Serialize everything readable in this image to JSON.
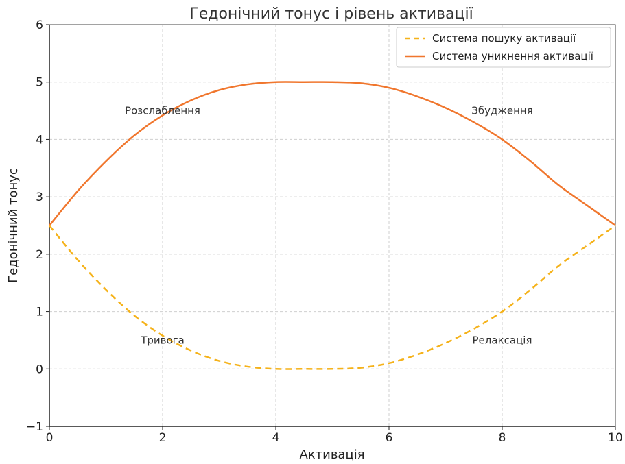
{
  "chart_data": {
    "type": "line",
    "title": "Гедонічний тонус і рівень активації",
    "xlabel": "Активація",
    "ylabel": "Гедонічний тонус",
    "xlim": [
      0,
      10
    ],
    "ylim": [
      -1,
      6
    ],
    "x_ticks": [
      0,
      2,
      4,
      6,
      8,
      10
    ],
    "y_ticks": [
      -1,
      0,
      1,
      2,
      3,
      4,
      5,
      6
    ],
    "grid": true,
    "legend_position": "top-right",
    "series": [
      {
        "name": "Система пошуку активації",
        "color": "#f5b21a",
        "style": "dashed",
        "x": [
          0,
          0.5,
          1,
          1.5,
          2,
          2.5,
          3,
          3.5,
          4,
          4.5,
          5,
          5.5,
          6,
          6.5,
          7,
          7.5,
          8,
          8.5,
          9,
          9.5,
          10
        ],
        "y": [
          2.5,
          1.9,
          1.38,
          0.93,
          0.58,
          0.32,
          0.14,
          0.04,
          0.0,
          0.0,
          0.0,
          0.02,
          0.1,
          0.25,
          0.45,
          0.7,
          1.0,
          1.38,
          1.8,
          2.15,
          2.5
        ]
      },
      {
        "name": "Система уникнення активації",
        "color": "#f0762d",
        "style": "solid",
        "x": [
          0,
          0.5,
          1,
          1.5,
          2,
          2.5,
          3,
          3.5,
          4,
          4.5,
          5,
          5.5,
          6,
          6.5,
          7,
          7.5,
          8,
          8.5,
          9,
          9.5,
          10
        ],
        "y": [
          2.5,
          3.1,
          3.62,
          4.07,
          4.42,
          4.68,
          4.86,
          4.96,
          5.0,
          5.0,
          5.0,
          4.98,
          4.9,
          4.75,
          4.55,
          4.3,
          4.0,
          3.62,
          3.2,
          2.85,
          2.5
        ]
      }
    ],
    "annotations": [
      {
        "text": "Розслаблення",
        "x": 2.0,
        "y": 4.5
      },
      {
        "text": "Збудження",
        "x": 8.0,
        "y": 4.5
      },
      {
        "text": "Тривога",
        "x": 2.0,
        "y": 0.5
      },
      {
        "text": "Релаксація",
        "x": 8.0,
        "y": 0.5
      }
    ]
  }
}
